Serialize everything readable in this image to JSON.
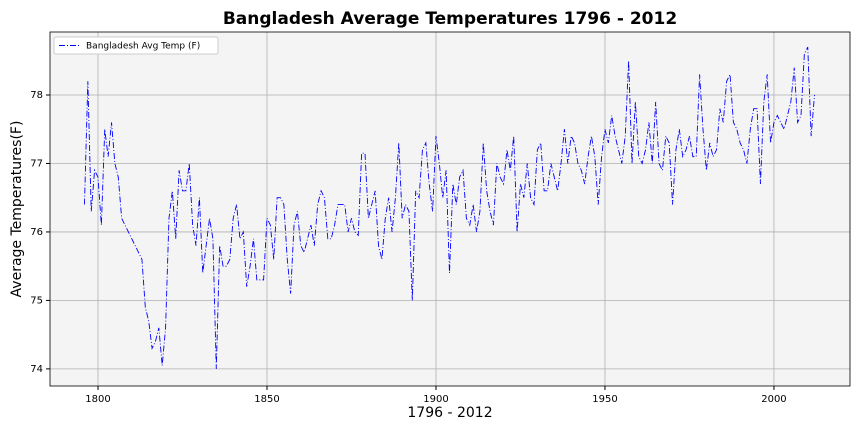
{
  "chart_data": {
    "type": "line",
    "title": "Bangladesh Average Temperatures 1796 - 2012",
    "xlabel": "1796 - 2012",
    "ylabel": "Average Temperatures(F)",
    "x": [
      1796,
      1797,
      1798,
      1799,
      1800,
      1801,
      1802,
      1803,
      1804,
      1805,
      1806,
      1807,
      1808,
      1809,
      1810,
      1811,
      1812,
      1813,
      1814,
      1815,
      1816,
      1817,
      1818,
      1819,
      1820,
      1821,
      1822,
      1823,
      1824,
      1825,
      1826,
      1827,
      1828,
      1829,
      1830,
      1831,
      1832,
      1833,
      1834,
      1835,
      1836,
      1837,
      1838,
      1839,
      1840,
      1841,
      1842,
      1843,
      1844,
      1845,
      1846,
      1847,
      1848,
      1849,
      1850,
      1851,
      1852,
      1853,
      1854,
      1855,
      1856,
      1857,
      1858,
      1859,
      1860,
      1861,
      1862,
      1863,
      1864,
      1865,
      1866,
      1867,
      1868,
      1869,
      1870,
      1871,
      1872,
      1873,
      1874,
      1875,
      1876,
      1877,
      1878,
      1879,
      1880,
      1881,
      1882,
      1883,
      1884,
      1885,
      1886,
      1887,
      1888,
      1889,
      1890,
      1891,
      1892,
      1893,
      1894,
      1895,
      1896,
      1897,
      1898,
      1899,
      1900,
      1901,
      1902,
      1903,
      1904,
      1905,
      1906,
      1907,
      1908,
      1909,
      1910,
      1911,
      1912,
      1913,
      1914,
      1915,
      1916,
      1917,
      1918,
      1919,
      1920,
      1921,
      1922,
      1923,
      1924,
      1925,
      1926,
      1927,
      1928,
      1929,
      1930,
      1931,
      1932,
      1933,
      1934,
      1935,
      1936,
      1937,
      1938,
      1939,
      1940,
      1941,
      1942,
      1943,
      1944,
      1945,
      1946,
      1947,
      1948,
      1949,
      1950,
      1951,
      1952,
      1953,
      1954,
      1955,
      1956,
      1957,
      1958,
      1959,
      1960,
      1961,
      1962,
      1963,
      1964,
      1965,
      1966,
      1967,
      1968,
      1969,
      1970,
      1971,
      1972,
      1973,
      1974,
      1975,
      1976,
      1977,
      1978,
      1979,
      1980,
      1981,
      1982,
      1983,
      1984,
      1985,
      1986,
      1987,
      1988,
      1989,
      1990,
      1991,
      1992,
      1993,
      1994,
      1995,
      1996,
      1997,
      1998,
      1999,
      2000,
      2001,
      2002,
      2003,
      2004,
      2005,
      2006,
      2007,
      2008,
      2009,
      2010,
      2011,
      2012
    ],
    "series": [
      {
        "name": "Bangladesh Avg Temp (F)",
        "color": "#0000ff",
        "values": [
          76.4,
          78.2,
          76.3,
          76.9,
          76.8,
          76.1,
          77.5,
          77.1,
          77.6,
          77.0,
          76.8,
          76.2,
          76.1,
          76.0,
          75.9,
          75.8,
          75.7,
          75.6,
          74.9,
          74.7,
          74.3,
          74.4,
          74.6,
          74.05,
          74.6,
          76.2,
          76.6,
          75.9,
          76.9,
          76.6,
          76.6,
          77.0,
          76.1,
          75.8,
          76.5,
          75.4,
          75.8,
          76.2,
          75.9,
          74.0,
          75.8,
          75.5,
          75.5,
          75.6,
          76.2,
          76.4,
          75.9,
          76.0,
          75.2,
          75.5,
          75.9,
          75.3,
          75.3,
          75.3,
          76.2,
          76.1,
          75.6,
          76.5,
          76.5,
          76.4,
          75.6,
          75.1,
          76.1,
          76.3,
          75.8,
          75.7,
          75.9,
          76.1,
          75.8,
          76.4,
          76.6,
          76.5,
          75.9,
          75.9,
          76.1,
          76.4,
          76.4,
          76.4,
          76.0,
          76.2,
          76.0,
          75.95,
          77.15,
          77.15,
          76.2,
          76.4,
          76.6,
          75.8,
          75.6,
          76.2,
          76.5,
          76.0,
          76.5,
          77.3,
          76.2,
          76.4,
          76.3,
          75.0,
          76.6,
          76.5,
          77.2,
          77.3,
          76.7,
          76.3,
          77.4,
          77.0,
          76.5,
          76.9,
          75.4,
          76.7,
          76.4,
          76.8,
          76.9,
          76.2,
          76.1,
          76.4,
          76.0,
          76.3,
          77.3,
          76.6,
          76.3,
          76.1,
          77.0,
          76.8,
          76.7,
          77.2,
          76.9,
          77.4,
          76.0,
          76.7,
          76.5,
          77.0,
          76.5,
          76.4,
          77.2,
          77.3,
          76.6,
          76.6,
          77.0,
          76.8,
          76.6,
          77.0,
          77.5,
          77.0,
          77.4,
          77.3,
          77.0,
          76.9,
          76.7,
          77.1,
          77.4,
          77.1,
          76.4,
          77.1,
          77.5,
          77.3,
          77.7,
          77.4,
          77.2,
          77.0,
          77.4,
          78.5,
          77.0,
          77.9,
          77.1,
          77.0,
          77.2,
          77.6,
          77.0,
          77.9,
          77.0,
          76.9,
          77.4,
          77.3,
          76.4,
          77.2,
          77.5,
          77.1,
          77.2,
          77.4,
          77.1,
          77.1,
          78.3,
          77.5,
          76.9,
          77.3,
          77.1,
          77.2,
          77.8,
          77.6,
          78.2,
          78.3,
          77.6,
          77.5,
          77.3,
          77.2,
          77.0,
          77.5,
          77.8,
          77.8,
          76.7,
          77.9,
          78.3,
          77.3,
          77.6,
          77.7,
          77.6,
          77.5,
          77.7,
          77.9,
          78.4,
          77.6,
          77.7,
          78.6,
          78.7,
          77.4,
          78.0
        ]
      }
    ],
    "xlim": [
      1785.8,
      2022.5
    ],
    "ylim": [
      73.75,
      78.92
    ],
    "xticks": [
      1800,
      1850,
      1900,
      1950,
      2000
    ],
    "yticks": [
      74,
      75,
      76,
      77,
      78
    ],
    "grid": true,
    "legend": "upper left"
  }
}
